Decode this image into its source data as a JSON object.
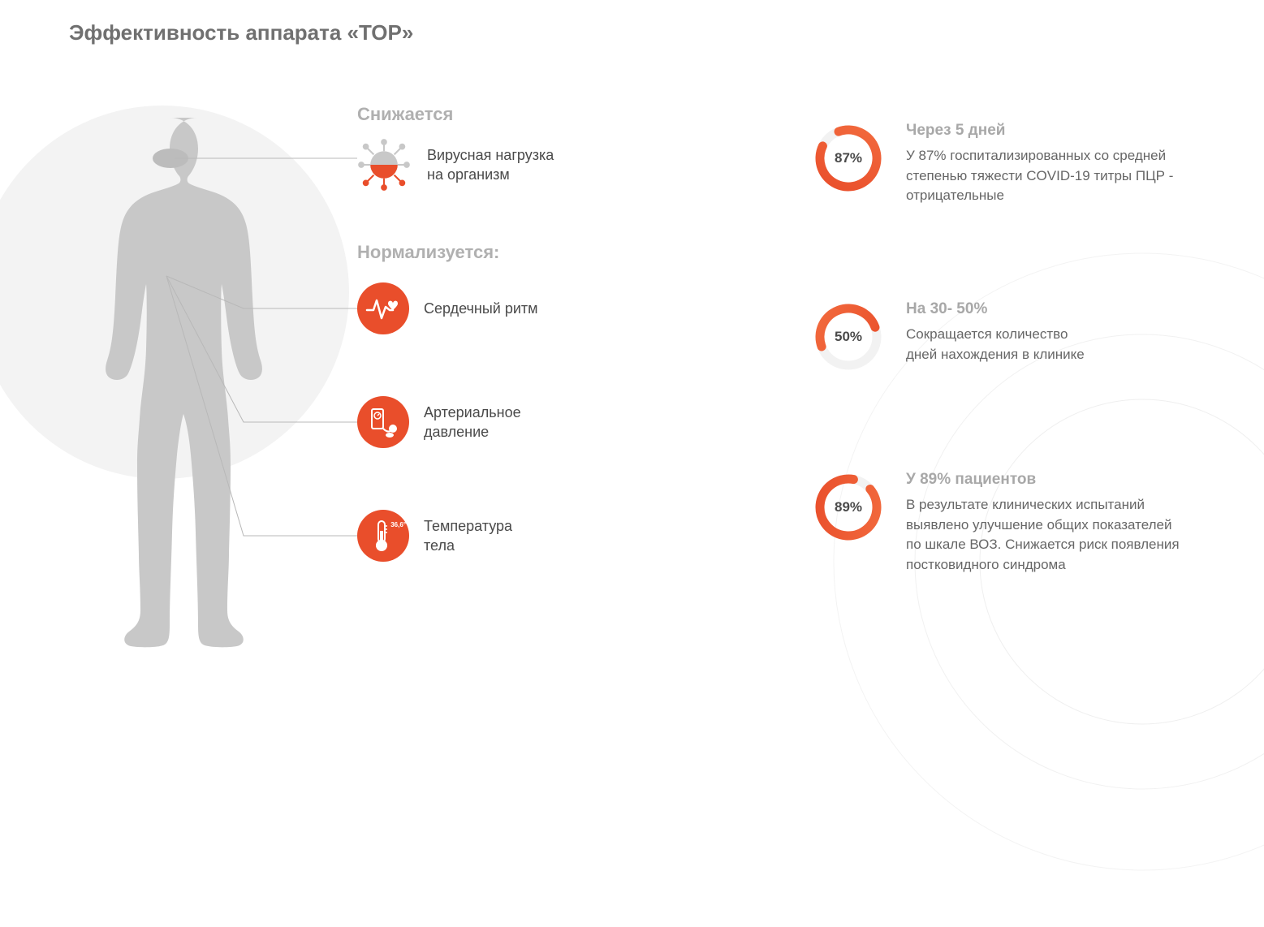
{
  "title": "Эффективность аппарата «ТОР»",
  "colors": {
    "accent": "#e94e2b",
    "accent_light": "#f26a3d",
    "heading_gray": "#b0b0b0",
    "title_gray": "#707070",
    "text": "#4a4a4a",
    "desc": "#666666",
    "silhouette": "#c8c8c8",
    "bg_circle": "#f3f3f3",
    "donut_track": "#f2f2f2",
    "line": "#b8b8b8"
  },
  "left": {
    "decreases": {
      "heading": "Снижается",
      "items": [
        {
          "icon": "virus",
          "label": "Вирусная нагрузка\nна организм"
        }
      ]
    },
    "normalizes": {
      "heading": "Нормализуется:",
      "items": [
        {
          "icon": "heart-rate",
          "label": "Сердечный ритм"
        },
        {
          "icon": "blood-pressure",
          "label": "Артериальное\nдавление"
        },
        {
          "icon": "thermometer",
          "label": "Температура\nтела",
          "badge": "36,6°"
        }
      ]
    }
  },
  "stats": [
    {
      "percent": 87,
      "percent_label": "87%",
      "title": "Через 5 дней",
      "desc": "У 87% госпитализированных со средней степенью тяжести COVID-19 титры ПЦР - отрицательные",
      "gap_deg": 45,
      "rotation": -110
    },
    {
      "percent": 50,
      "percent_label": "50%",
      "title": "На 30- 50%",
      "desc": "Сокращается количество\nдней нахождения в клинике",
      "gap_deg": 180,
      "rotation": 160
    },
    {
      "percent": 89,
      "percent_label": "89%",
      "title": "У 89% пациентов",
      "desc": "В результате клинических испытаний выявлено улучшение общих показателей по шкале ВОЗ. Снижается риск появления постковидного синдрома",
      "gap_deg": 40,
      "rotation": -40
    }
  ],
  "layout": {
    "title_fontsize": 26,
    "heading_fontsize": 22,
    "item_fontsize": 18,
    "stat_title_fontsize": 19,
    "stat_desc_fontsize": 17,
    "donut_size": 90,
    "donut_stroke": 11,
    "icon_circle_size": 64
  }
}
